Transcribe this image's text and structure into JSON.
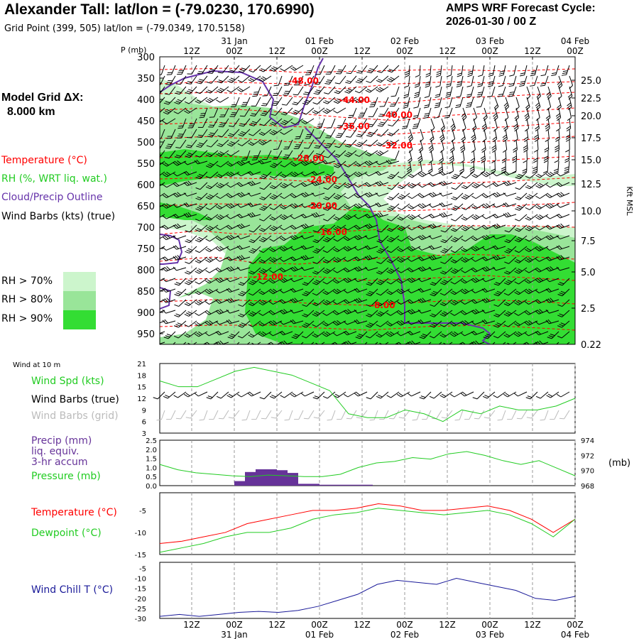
{
  "header": {
    "title": "Alexander Tall:  lat/lon = (-79.0230, 170.6990)",
    "subtitle": "Grid Point (399, 505) lat/lon = (-79.0349, 170.5158)",
    "cycle_line1": "AMPS WRF Forecast Cycle:",
    "cycle_line2": "2026-01-30 / 00  Z"
  },
  "left_legend": {
    "grid_label": "Model Grid ΔX:",
    "grid_value": "8.000 km",
    "temperature": "Temperature (°C)",
    "rh": "RH (%, WRT liq. wat.)",
    "cloud": "Cloud/Precip Outline",
    "wind": "Wind Barbs (kts) (true)",
    "rh70": "RH > 70%",
    "rh80": "RH > 80%",
    "rh90": "RH > 90%",
    "wind10m": "Wind at 10 m",
    "wind_spd": "Wind Spd (kts)",
    "barbs_true": "Wind Barbs (true)",
    "barbs_grid": "Wind Barbs (grid)",
    "precip1": "Precip (mm)",
    "precip2": "liq. equiv.",
    "precip3": "3-hr accum",
    "pressure": "Pressure (mb)",
    "temp2": "Temperature (°C)",
    "dewpoint": "Dewpoint (°C)",
    "windchill": "Wind Chill T (°C)"
  },
  "colors": {
    "temperature": "#ff0000",
    "rh": "#22cc22",
    "cloud": "#6633aa",
    "wind_chill": "#1a1a99",
    "precip": "#663399",
    "rh70": "#ccf5cc",
    "rh80": "#99e599",
    "rh90": "#33dd33",
    "barb_grid": "#bbbbbb"
  },
  "time_axis": {
    "hour_labels": [
      "12Z",
      "00Z",
      "12Z",
      "00Z",
      "12Z",
      "00Z",
      "12Z",
      "00Z",
      "12Z",
      "00Z"
    ],
    "date_labels": [
      "31 Jan",
      "01 Feb",
      "02 Feb",
      "03 Feb",
      "04 Feb"
    ],
    "top_unit_label": "P (mb)"
  },
  "chart_data": [
    {
      "type": "heatmap",
      "panel": "time-height cross section",
      "ylabel": "P (mb)",
      "y_ticks": [
        "300",
        "350",
        "400",
        "450",
        "500",
        "550",
        "600",
        "650",
        "700",
        "750",
        "800",
        "850",
        "900",
        "950"
      ],
      "ylim": [
        300,
        975
      ],
      "right_ylabel": "Kft MSL",
      "right_ticks": [
        "25.0",
        "22.5",
        "20.0",
        "17.5",
        "15.0",
        "12.5",
        "10.0",
        "7.5",
        "5.0",
        "2.5",
        "0.22"
      ],
      "temperature_contour_labels": [
        "-48.00",
        "-44.00",
        "-40.00",
        "-36.00",
        "-32.00",
        "-28.00",
        "-24.00",
        "-20.00",
        "-16.00",
        "-12.00",
        "-8.00"
      ]
    },
    {
      "type": "line",
      "panel": "10 m wind speed",
      "series": [
        {
          "name": "Wind Spd (kts)",
          "values": [
            16.5,
            15,
            15,
            17,
            19,
            20,
            19,
            18,
            16,
            14,
            8,
            7,
            7,
            9,
            8,
            6,
            9,
            8,
            10,
            9,
            9,
            10,
            12
          ]
        }
      ],
      "y_ticks": [
        "21",
        "18",
        "15",
        "12",
        "9",
        "6",
        "3"
      ],
      "ylim": [
        3,
        21
      ]
    },
    {
      "type": "bar",
      "panel": "precipitation and pressure",
      "precip_series": {
        "name": "Precip (mm)",
        "values": [
          0,
          0,
          0,
          0.25,
          0.75,
          0.9,
          0.9,
          0.85,
          0.7,
          0.1,
          0.1,
          0.05,
          0.05,
          0.05,
          0.05,
          0.05,
          0,
          0,
          0,
          0
        ]
      },
      "left_ticks": [
        "2.5",
        "2.0",
        "1.5",
        "1.0",
        "0.5",
        "0.0"
      ],
      "left_ylim": [
        0,
        2.5
      ],
      "pressure_series": {
        "name": "Pressure (mb)",
        "values": [
          970.8,
          970.1,
          969.7,
          969.5,
          969.3,
          969.2,
          969.4,
          969.3,
          969.2,
          969.2,
          969.5,
          970.4,
          971.0,
          971.2,
          971.7,
          971.5,
          972.2,
          972.5,
          972.0,
          971.3,
          970.8,
          971.3,
          970.3,
          969.3
        ]
      },
      "right_ticks": [
        "974",
        "972",
        "970",
        "968"
      ],
      "right_ylim": [
        968,
        974
      ],
      "right_unit": "(mb)"
    },
    {
      "type": "line",
      "panel": "temperature and dewpoint",
      "series": [
        {
          "name": "Temperature (°C)",
          "values": [
            -12.5,
            -12,
            -11,
            -10,
            -8,
            -7,
            -6,
            -5,
            -5,
            -4.5,
            -3.5,
            -4,
            -5,
            -5,
            -4.5,
            -4,
            -5,
            -7,
            -10,
            -7
          ]
        },
        {
          "name": "Dewpoint (°C)",
          "values": [
            -14.5,
            -13.5,
            -12.5,
            -11,
            -10,
            -10,
            -9,
            -7,
            -6,
            -5.5,
            -4.5,
            -5,
            -5.5,
            -6,
            -5.5,
            -5,
            -6,
            -8,
            -11,
            -7
          ]
        }
      ],
      "y_ticks": [
        "-5",
        "-10",
        "-15"
      ],
      "ylim": [
        -15,
        -1
      ]
    },
    {
      "type": "line",
      "panel": "wind chill",
      "series": [
        {
          "name": "Wind Chill T (°C)",
          "values": [
            -29,
            -28,
            -29,
            -28,
            -27,
            -26.5,
            -27,
            -26,
            -24,
            -21,
            -18,
            -13,
            -11,
            -12,
            -13,
            -10,
            -12,
            -14,
            -16,
            -20,
            -21,
            -19
          ]
        }
      ],
      "y_ticks": [
        "-5",
        "-10",
        "-15",
        "-20",
        "-25",
        "-30"
      ],
      "ylim": [
        -30,
        -2
      ]
    }
  ]
}
